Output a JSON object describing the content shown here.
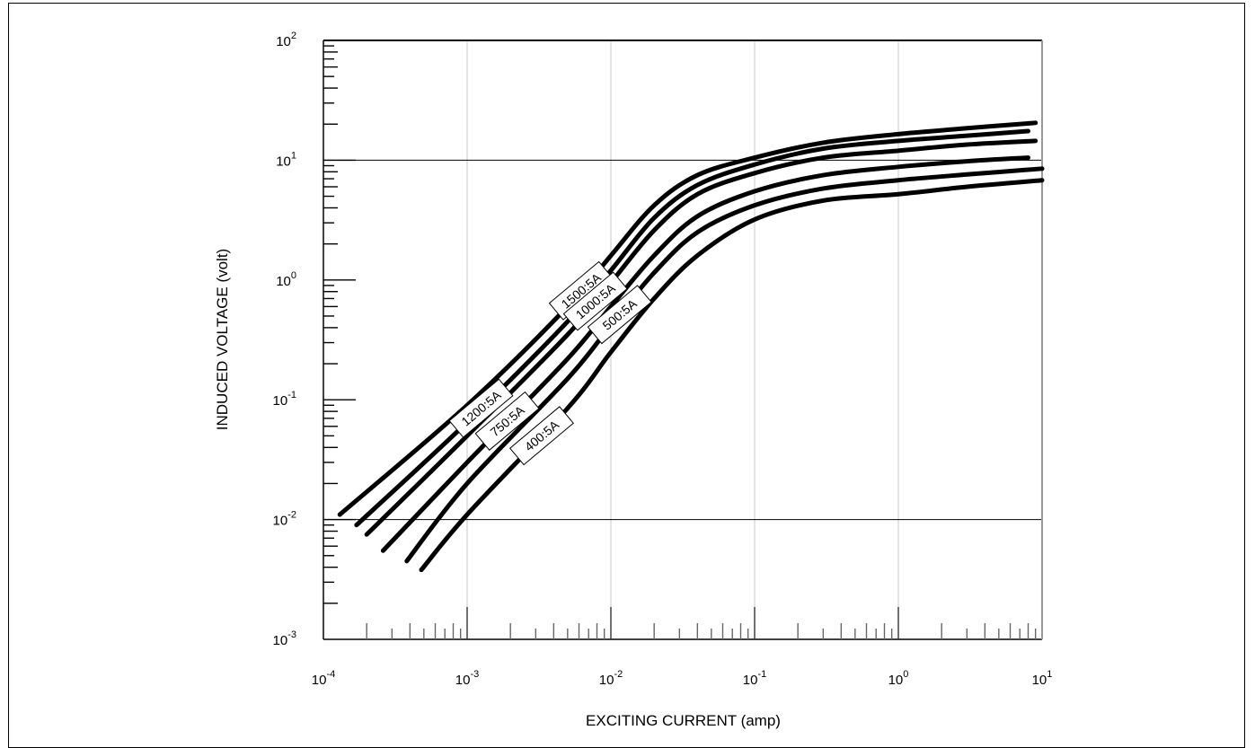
{
  "chart_data": {
    "type": "line",
    "title": "",
    "xlabel": "EXCITING CURRENT (amp)",
    "ylabel": "INDUCED VOLTAGE (volt)",
    "x_scale": "log",
    "y_scale": "log",
    "xlim": [
      0.0001,
      10
    ],
    "ylim": [
      0.001,
      100
    ],
    "x_ticks": [
      {
        "base": "10",
        "exp": "-4"
      },
      {
        "base": "10",
        "exp": "-3"
      },
      {
        "base": "10",
        "exp": "-2"
      },
      {
        "base": "10",
        "exp": "-1"
      },
      {
        "base": "10",
        "exp": "0"
      },
      {
        "base": "10",
        "exp": "1"
      }
    ],
    "y_ticks": [
      {
        "base": "10",
        "exp": "-3"
      },
      {
        "base": "10",
        "exp": "-2"
      },
      {
        "base": "10",
        "exp": "-1"
      },
      {
        "base": "10",
        "exp": "0"
      },
      {
        "base": "10",
        "exp": "1"
      },
      {
        "base": "10",
        "exp": "2"
      }
    ],
    "grid": "vertical decade lines and horizontal lines at 10^-2 and 10^1",
    "series": [
      {
        "name": "1500:5A",
        "x": [
          0.00013,
          0.001,
          0.005,
          0.01,
          0.02,
          0.04,
          0.1,
          0.3,
          1,
          3,
          9
        ],
        "y": [
          0.011,
          0.09,
          0.6,
          1.6,
          4.2,
          7.5,
          10.5,
          14,
          16.5,
          18.5,
          20.5
        ]
      },
      {
        "name": "1200:5A",
        "x": [
          0.00017,
          0.001,
          0.005,
          0.01,
          0.02,
          0.04,
          0.1,
          0.3,
          1,
          3,
          8
        ],
        "y": [
          0.009,
          0.065,
          0.45,
          1.2,
          3.3,
          6.2,
          9.2,
          12.5,
          14.5,
          16,
          17.5
        ]
      },
      {
        "name": "1000:5A",
        "x": [
          0.0002,
          0.001,
          0.005,
          0.01,
          0.02,
          0.04,
          0.1,
          0.3,
          1,
          3,
          9
        ],
        "y": [
          0.0075,
          0.05,
          0.35,
          0.95,
          2.6,
          5.2,
          7.8,
          10.5,
          12,
          13.5,
          14.5
        ]
      },
      {
        "name": "750:5A",
        "x": [
          0.00026,
          0.001,
          0.005,
          0.01,
          0.02,
          0.04,
          0.1,
          0.3,
          1,
          3,
          8
        ],
        "y": [
          0.0055,
          0.03,
          0.22,
          0.6,
          1.6,
          3.4,
          5.5,
          7.5,
          8.8,
          9.8,
          10.5
        ]
      },
      {
        "name": "500:5A",
        "x": [
          0.00038,
          0.001,
          0.005,
          0.01,
          0.02,
          0.04,
          0.1,
          0.3,
          1,
          3,
          10
        ],
        "y": [
          0.0045,
          0.02,
          0.15,
          0.42,
          1.15,
          2.5,
          4.2,
          5.8,
          6.8,
          7.6,
          8.5
        ]
      },
      {
        "name": "400:5A",
        "x": [
          0.00048,
          0.001,
          0.005,
          0.01,
          0.02,
          0.04,
          0.1,
          0.3,
          1,
          3,
          10
        ],
        "y": [
          0.0038,
          0.011,
          0.085,
          0.25,
          0.7,
          1.6,
          3.2,
          4.6,
          5.2,
          6,
          6.8
        ]
      }
    ]
  }
}
